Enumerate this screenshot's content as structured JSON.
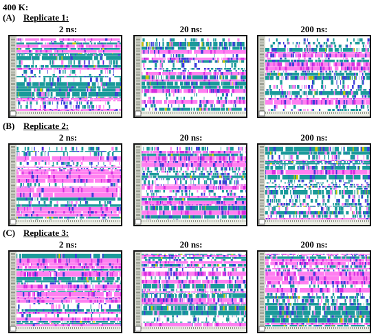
{
  "figure": {
    "title": "400 K:",
    "palette": {
      "helix": "#ff7ff0",
      "turn": "#1a9a9a",
      "g310": "#3b3bd9",
      "pi": "#d72ee0",
      "coil": "#ffffff",
      "bridge": "#c8c800",
      "ruler_bg": "#d8dad0",
      "ruler_tick": "#7c8073"
    }
  },
  "replicates": [
    {
      "tag": "(A)",
      "name": "Replicate 1:",
      "panels": [
        {
          "time": "2 ns:"
        },
        {
          "time": "20 ns:"
        },
        {
          "time": "200 ns:"
        }
      ]
    },
    {
      "tag": "(B)",
      "name": "Replicate 2:",
      "panels": [
        {
          "time": "2 ns:"
        },
        {
          "time": "20 ns:"
        },
        {
          "time": "200 ns:"
        }
      ]
    },
    {
      "tag": "(C)",
      "name": "Replicate 3:",
      "panels": [
        {
          "time": "2 ns:"
        },
        {
          "time": "20 ns:"
        },
        {
          "time": "200 ns:"
        }
      ]
    }
  ],
  "chart_data": {
    "type": "heatmap"
  }
}
